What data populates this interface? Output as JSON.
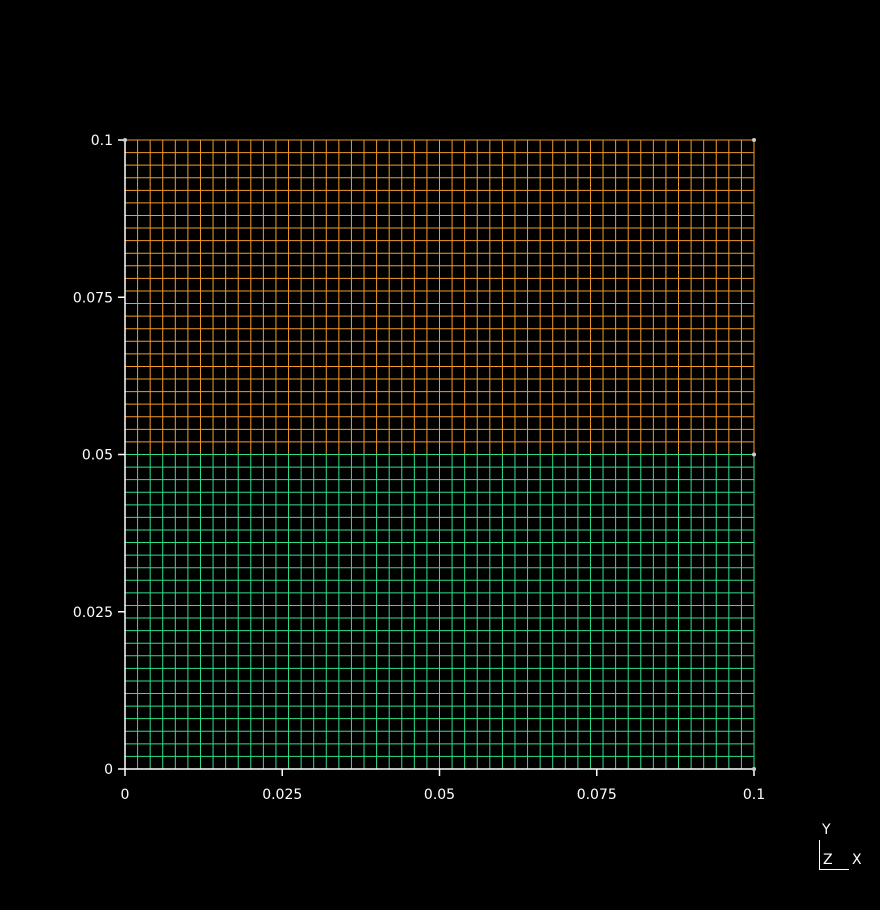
{
  "viewer": {
    "background": "#000000",
    "axis_color": "#ffffff"
  },
  "chart_data": {
    "type": "mesh",
    "xlim": [
      0,
      0.1
    ],
    "ylim": [
      0,
      0.1
    ],
    "x_ticks": [
      "0",
      "0.025",
      "0.05",
      "0.075",
      "0.1"
    ],
    "x_tick_values": [
      0,
      0.025,
      0.05,
      0.075,
      0.1
    ],
    "y_ticks": [
      "0",
      "0.025",
      "0.05",
      "0.075",
      "0.1"
    ],
    "y_tick_values": [
      0,
      0.025,
      0.05,
      0.075,
      0.1
    ],
    "blocks": [
      {
        "name": "",
        "x_range": [
          0,
          0.1
        ],
        "y_range": [
          0.05,
          0.1
        ],
        "nx": 50,
        "ny": 25,
        "color": "#f29b27"
      },
      {
        "name": "",
        "x_range": [
          0,
          0.1
        ],
        "y_range": [
          0,
          0.05
        ],
        "nx": 50,
        "ny": 25,
        "color": "#2fe08a"
      }
    ],
    "corner_nodes": [
      [
        0,
        0.1
      ],
      [
        0.1,
        0.1
      ],
      [
        0.1,
        0.05
      ],
      [
        0.1,
        0
      ]
    ]
  },
  "triad": {
    "y_label": "Y",
    "z_label": "Z",
    "x_label": "X"
  }
}
